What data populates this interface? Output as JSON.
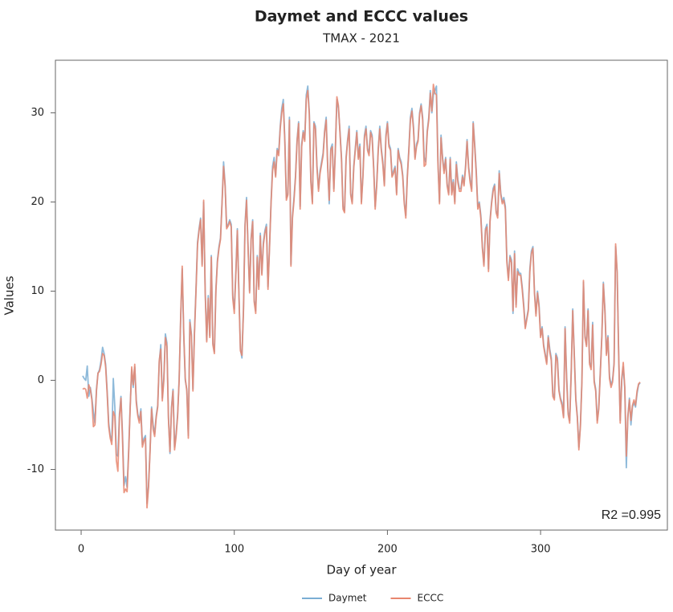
{
  "chart_data": {
    "type": "line",
    "title": "Daymet and ECCC values",
    "subtitle": "TMAX - 2021",
    "x_label": "Day of year",
    "y_label": "Values",
    "annotation": "R2 =0.995",
    "xlim": [
      -16.8,
      382.8
    ],
    "ylim": [
      -16.8,
      35.9
    ],
    "xticks": [
      0,
      100,
      200,
      300
    ],
    "yticks": [
      -10,
      0,
      10,
      20,
      30
    ],
    "legend": "bottom",
    "x": [
      1,
      2,
      3,
      4,
      5,
      6,
      7,
      8,
      9,
      10,
      11,
      12,
      13,
      14,
      15,
      16,
      17,
      18,
      19,
      20,
      21,
      22,
      23,
      24,
      25,
      26,
      27,
      28,
      29,
      30,
      31,
      32,
      33,
      34,
      35,
      36,
      37,
      38,
      39,
      40,
      41,
      42,
      43,
      44,
      45,
      46,
      47,
      48,
      49,
      50,
      51,
      52,
      53,
      54,
      55,
      56,
      57,
      58,
      59,
      60,
      61,
      62,
      63,
      64,
      65,
      66,
      67,
      68,
      69,
      70,
      71,
      72,
      73,
      74,
      75,
      76,
      77,
      78,
      79,
      80,
      81,
      82,
      83,
      84,
      85,
      86,
      87,
      88,
      89,
      90,
      91,
      92,
      93,
      94,
      95,
      96,
      97,
      98,
      99,
      100,
      101,
      102,
      103,
      104,
      105,
      106,
      107,
      108,
      109,
      110,
      111,
      112,
      113,
      114,
      115,
      116,
      117,
      118,
      119,
      120,
      121,
      122,
      123,
      124,
      125,
      126,
      127,
      128,
      129,
      130,
      131,
      132,
      133,
      134,
      135,
      136,
      137,
      138,
      139,
      140,
      141,
      142,
      143,
      144,
      145,
      146,
      147,
      148,
      149,
      150,
      151,
      152,
      153,
      154,
      155,
      156,
      157,
      158,
      159,
      160,
      161,
      162,
      163,
      164,
      165,
      166,
      167,
      168,
      169,
      170,
      171,
      172,
      173,
      174,
      175,
      176,
      177,
      178,
      179,
      180,
      181,
      182,
      183,
      184,
      185,
      186,
      187,
      188,
      189,
      190,
      191,
      192,
      193,
      194,
      195,
      196,
      197,
      198,
      199,
      200,
      201,
      202,
      203,
      204,
      205,
      206,
      207,
      208,
      209,
      210,
      211,
      212,
      213,
      214,
      215,
      216,
      217,
      218,
      219,
      220,
      221,
      222,
      223,
      224,
      225,
      226,
      227,
      228,
      229,
      230,
      231,
      232,
      233,
      234,
      235,
      236,
      237,
      238,
      239,
      240,
      241,
      242,
      243,
      244,
      245,
      246,
      247,
      248,
      249,
      250,
      251,
      252,
      253,
      254,
      255,
      256,
      257,
      258,
      259,
      260,
      261,
      262,
      263,
      264,
      265,
      266,
      267,
      268,
      269,
      270,
      271,
      272,
      273,
      274,
      275,
      276,
      277,
      278,
      279,
      280,
      281,
      282,
      283,
      284,
      285,
      286,
      287,
      288,
      289,
      290,
      291,
      292,
      293,
      294,
      295,
      296,
      297,
      298,
      299,
      300,
      301,
      302,
      303,
      304,
      305,
      306,
      307,
      308,
      309,
      310,
      311,
      312,
      313,
      314,
      315,
      316,
      317,
      318,
      319,
      320,
      321,
      322,
      323,
      324,
      325,
      326,
      327,
      328,
      329,
      330,
      331,
      332,
      333,
      334,
      335,
      336,
      337,
      338,
      339,
      340,
      341,
      342,
      343,
      344,
      345,
      346,
      347,
      348,
      349,
      350,
      351,
      352,
      353,
      354,
      355,
      356,
      357,
      358,
      359,
      360,
      361,
      362,
      363,
      364,
      365
    ],
    "series": [
      {
        "name": "Daymet",
        "color": "#7aaed4",
        "values": [
          0.5,
          0.2,
          0.0,
          1.6,
          -1.8,
          -0.8,
          -2.0,
          -3.5,
          -4.8,
          -1.0,
          0.8,
          1.2,
          2.2,
          3.7,
          3.0,
          1.8,
          -1.2,
          -4.8,
          -6.2,
          -6.8,
          0.2,
          -3.0,
          -8.3,
          -8.5,
          -3.8,
          -1.8,
          -6.0,
          -11.8,
          -10.8,
          -12.0,
          -8.0,
          -3.0,
          1.2,
          -0.8,
          1.5,
          -2.2,
          -3.8,
          -4.5,
          -3.2,
          -7.2,
          -6.5,
          -6.2,
          -13.8,
          -11.8,
          -7.8,
          -3.0,
          -5.0,
          -6.0,
          -4.0,
          -2.8,
          2.0,
          4.0,
          -2.0,
          0.3,
          5.2,
          4.2,
          -4.0,
          -8.2,
          -3.0,
          -1.0,
          -7.5,
          -6.0,
          -3.8,
          0.2,
          7.0,
          12.5,
          5.0,
          0.0,
          -1.0,
          -6.2,
          6.8,
          5.2,
          -1.0,
          5.5,
          10.2,
          15.5,
          17.0,
          18.2,
          13.0,
          20.0,
          10.0,
          4.5,
          9.5,
          5.0,
          14.0,
          4.2,
          3.2,
          10.2,
          13.5,
          15.0,
          16.0,
          20.0,
          24.5,
          22.0,
          17.2,
          17.5,
          18.0,
          17.5,
          9.5,
          8.0,
          12.0,
          17.0,
          10.0,
          3.5,
          2.5,
          8.0,
          17.5,
          20.5,
          15.0,
          10.0,
          16.0,
          18.0,
          9.0,
          7.8,
          14.0,
          10.5,
          16.5,
          12.0,
          15.5,
          16.8,
          17.5,
          10.5,
          15.0,
          20.0,
          24.0,
          25.0,
          23.0,
          26.0,
          25.5,
          28.5,
          30.5,
          31.5,
          27.0,
          20.5,
          21.0,
          29.5,
          13.0,
          18.5,
          20.5,
          23.0,
          27.0,
          29.0,
          19.5,
          26.5,
          28.0,
          27.0,
          32.0,
          33.0,
          30.0,
          22.5,
          20.0,
          29.0,
          28.5,
          24.0,
          21.5,
          23.5,
          24.5,
          25.5,
          28.0,
          29.5,
          24.0,
          19.8,
          26.0,
          26.5,
          21.5,
          26.0,
          31.5,
          30.5,
          28.0,
          25.0,
          19.5,
          19.0,
          25.0,
          27.0,
          28.5,
          21.0,
          20.0,
          24.0,
          26.0,
          28.0,
          25.0,
          26.5,
          20.0,
          23.0,
          27.5,
          28.5,
          26.0,
          25.5,
          28.0,
          27.5,
          24.0,
          19.5,
          22.0,
          26.0,
          28.5,
          26.0,
          24.5,
          22.0,
          27.5,
          29.0,
          26.5,
          26.0,
          23.0,
          23.5,
          24.0,
          21.0,
          26.0,
          25.0,
          24.5,
          23.0,
          20.0,
          18.5,
          23.0,
          26.0,
          29.5,
          30.5,
          28.5,
          25.0,
          26.5,
          27.0,
          30.0,
          31.0,
          29.5,
          25.0,
          24.5,
          28.0,
          29.5,
          32.5,
          30.0,
          32.0,
          32.5,
          33.0,
          24.5,
          20.0,
          27.5,
          25.0,
          23.5,
          25.0,
          22.0,
          21.0,
          25.0,
          21.0,
          22.5,
          20.0,
          24.5,
          22.5,
          21.5,
          21.5,
          23.0,
          22.0,
          24.0,
          27.0,
          24.0,
          22.5,
          21.5,
          29.0,
          26.5,
          23.5,
          19.5,
          20.0,
          18.5,
          15.0,
          13.0,
          17.0,
          17.5,
          12.5,
          18.0,
          20.0,
          21.5,
          22.0,
          19.0,
          18.5,
          23.5,
          21.0,
          20.0,
          20.5,
          19.5,
          13.5,
          11.5,
          14.0,
          13.5,
          7.5,
          14.5,
          8.5,
          12.5,
          12.0,
          12.0,
          10.5,
          8.5,
          6.0,
          7.0,
          8.0,
          12.5,
          14.5,
          15.0,
          10.0,
          7.5,
          10.0,
          8.5,
          5.0,
          6.0,
          4.0,
          3.0,
          2.0,
          5.0,
          3.5,
          2.5,
          -1.5,
          -2.0,
          3.0,
          2.5,
          -1.0,
          -2.0,
          -2.5,
          -4.0,
          6.0,
          0.5,
          -3.5,
          -4.5,
          1.0,
          8.0,
          3.0,
          -2.0,
          -4.0,
          -7.5,
          -5.0,
          0.0,
          11.0,
          5.0,
          4.0,
          8.0,
          2.0,
          1.5,
          6.5,
          0.0,
          -1.0,
          -4.5,
          -3.0,
          1.0,
          5.0,
          11.0,
          8.0,
          3.0,
          5.0,
          0.5,
          -0.5,
          0.0,
          2.0,
          15.0,
          12.0,
          3.0,
          -4.5,
          0.0,
          1.5,
          -1.0,
          -9.8,
          -4.0,
          -2.0,
          -5.0,
          -3.0,
          -2.5,
          -3.0,
          -1.5,
          -0.5,
          -0.3
        ]
      },
      {
        "name": "ECCC",
        "color": "#e8866e",
        "values": [
          -1.0,
          -0.9,
          -1.0,
          -2.0,
          -0.5,
          -1.0,
          -2.2,
          -5.2,
          -5.0,
          -1.2,
          0.8,
          1.0,
          1.8,
          3.0,
          2.8,
          1.5,
          -1.5,
          -5.2,
          -6.5,
          -7.2,
          -3.5,
          -4.0,
          -9.0,
          -10.2,
          -4.2,
          -2.0,
          -6.5,
          -12.6,
          -12.2,
          -12.5,
          -8.3,
          -3.2,
          1.5,
          -0.5,
          1.8,
          -2.5,
          -4.0,
          -4.8,
          -3.5,
          -7.5,
          -6.8,
          -6.5,
          -14.3,
          -12.0,
          -8.0,
          -3.2,
          -5.5,
          -6.3,
          -4.2,
          -3.0,
          2.2,
          3.5,
          -2.3,
          0.0,
          4.8,
          3.8,
          -4.3,
          -8.0,
          -3.2,
          -1.2,
          -7.8,
          -6.3,
          -4.0,
          0.0,
          7.2,
          12.8,
          5.3,
          0.2,
          -1.2,
          -6.5,
          6.5,
          5.0,
          -1.2,
          5.2,
          10.0,
          15.2,
          16.8,
          18.0,
          12.8,
          20.2,
          9.8,
          4.3,
          9.2,
          4.8,
          13.8,
          4.0,
          3.0,
          10.0,
          13.3,
          14.8,
          15.8,
          19.8,
          24.0,
          21.8,
          17.0,
          17.3,
          17.8,
          17.2,
          9.2,
          7.5,
          11.8,
          16.8,
          9.8,
          3.3,
          2.8,
          7.8,
          17.2,
          20.2,
          14.8,
          9.8,
          15.8,
          17.8,
          8.8,
          7.5,
          13.8,
          10.2,
          16.2,
          11.8,
          15.2,
          16.5,
          17.2,
          10.2,
          14.8,
          19.8,
          23.5,
          24.5,
          22.8,
          25.8,
          25.2,
          28.2,
          30.0,
          31.0,
          26.8,
          20.2,
          20.8,
          29.2,
          12.8,
          18.2,
          20.2,
          22.8,
          26.8,
          28.8,
          19.2,
          26.2,
          27.8,
          26.8,
          31.5,
          32.5,
          29.8,
          22.2,
          19.8,
          28.8,
          28.2,
          23.8,
          21.2,
          23.2,
          24.2,
          25.2,
          27.8,
          29.2,
          23.8,
          20.2,
          25.8,
          26.2,
          21.2,
          25.8,
          31.8,
          30.8,
          27.8,
          24.8,
          19.2,
          18.8,
          24.8,
          26.8,
          28.2,
          20.8,
          19.8,
          23.8,
          25.8,
          27.8,
          24.8,
          26.2,
          19.8,
          22.8,
          27.2,
          28.2,
          25.8,
          25.2,
          27.8,
          27.2,
          23.8,
          19.2,
          21.8,
          25.8,
          28.2,
          25.8,
          24.2,
          21.8,
          27.2,
          28.8,
          26.2,
          25.8,
          22.8,
          23.2,
          23.8,
          20.8,
          25.8,
          24.8,
          24.2,
          22.8,
          19.8,
          18.2,
          22.8,
          25.8,
          29.2,
          30.2,
          28.2,
          24.8,
          26.2,
          26.8,
          29.8,
          30.8,
          29.2,
          24.0,
          24.2,
          27.8,
          29.2,
          32.2,
          30.2,
          33.2,
          32.2,
          32.0,
          24.2,
          19.8,
          27.2,
          24.8,
          23.2,
          24.8,
          21.8,
          20.8,
          24.8,
          20.8,
          22.2,
          19.8,
          24.2,
          22.2,
          21.2,
          21.2,
          22.8,
          21.8,
          23.8,
          26.8,
          23.8,
          22.2,
          21.2,
          28.8,
          26.2,
          23.2,
          19.2,
          19.8,
          18.2,
          14.8,
          12.8,
          16.8,
          17.2,
          12.2,
          17.8,
          19.8,
          21.2,
          21.8,
          18.8,
          18.2,
          23.2,
          20.8,
          19.8,
          20.2,
          19.2,
          13.2,
          11.2,
          13.8,
          13.2,
          7.8,
          14.2,
          8.2,
          12.2,
          11.8,
          11.8,
          10.2,
          8.2,
          5.8,
          6.8,
          7.8,
          12.2,
          14.2,
          14.8,
          9.8,
          7.2,
          9.8,
          8.2,
          4.8,
          5.8,
          3.8,
          2.8,
          1.8,
          4.8,
          3.2,
          2.2,
          -1.8,
          -2.2,
          2.8,
          2.2,
          -1.2,
          -2.2,
          -2.8,
          -4.2,
          5.8,
          0.2,
          -3.8,
          -4.8,
          0.8,
          7.8,
          2.8,
          -2.2,
          -4.2,
          -7.8,
          -5.2,
          -0.2,
          11.2,
          4.8,
          3.8,
          7.8,
          1.8,
          1.2,
          6.2,
          -0.2,
          -1.2,
          -4.8,
          -3.2,
          0.8,
          4.8,
          10.8,
          7.8,
          2.8,
          4.8,
          0.2,
          -0.8,
          -0.2,
          1.8,
          15.3,
          12.2,
          2.8,
          -4.8,
          0.2,
          2.0,
          -0.8,
          -8.5,
          -4.2,
          -2.2,
          -4.5,
          -2.8,
          -2.2,
          -2.8,
          -1.2,
          -0.4,
          -0.2
        ]
      }
    ]
  }
}
